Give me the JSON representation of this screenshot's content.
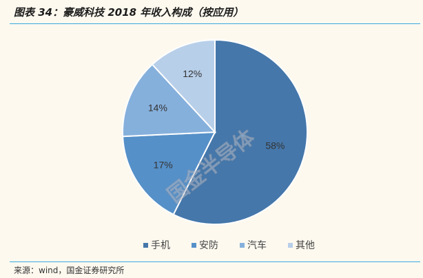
{
  "header": {
    "title": "图表 34：豪威科技 2018 年收入构成（按应用）"
  },
  "footer": {
    "source": "来源：wind，国金证券研究所"
  },
  "watermark": "国金半导体",
  "chart_data": {
    "type": "pie",
    "start_angle_deg": 0,
    "direction": "clockwise",
    "legend_position": "bottom",
    "slices": [
      {
        "label": "手机",
        "value": 58,
        "display": "58%",
        "color": "#4577aa"
      },
      {
        "label": "安防",
        "value": 17,
        "display": "17%",
        "color": "#5690c8"
      },
      {
        "label": "汽车",
        "value": 14,
        "display": "14%",
        "color": "#86b0dc"
      },
      {
        "label": "其他",
        "value": 12,
        "display": "12%",
        "color": "#b8cfe9"
      }
    ]
  }
}
